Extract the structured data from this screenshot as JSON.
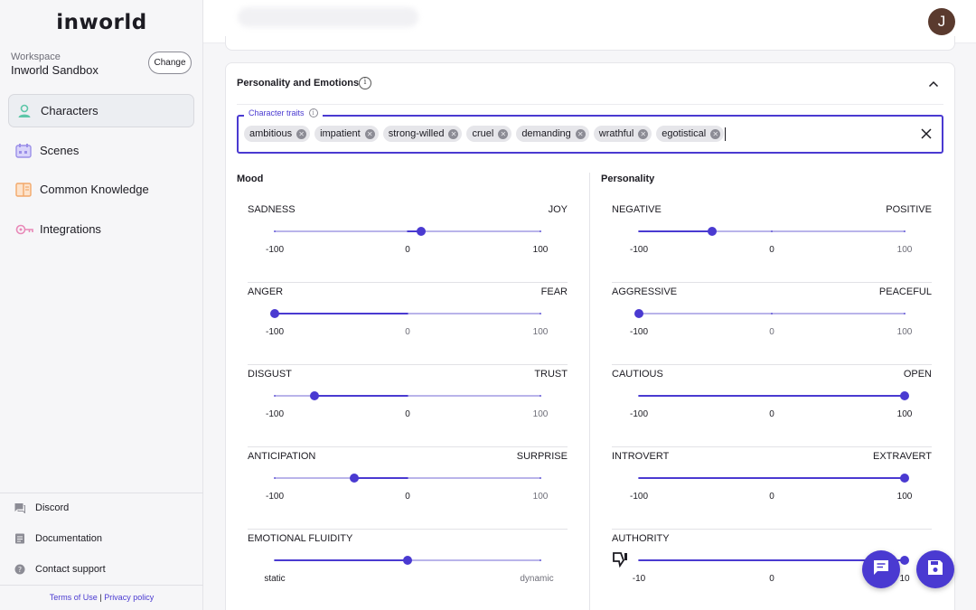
{
  "brand": {
    "logo_text": "inworld"
  },
  "workspace": {
    "label": "Workspace",
    "name": "Inworld Sandbox",
    "change_label": "Change"
  },
  "nav": [
    {
      "label": "Characters",
      "icon": "person-icon",
      "active": true
    },
    {
      "label": "Scenes",
      "icon": "scenes-icon",
      "active": false
    },
    {
      "label": "Common Knowledge",
      "icon": "book-icon",
      "active": false
    },
    {
      "label": "Integrations",
      "icon": "key-icon",
      "active": false
    }
  ],
  "footer": [
    {
      "label": "Discord",
      "icon": "chat-icon"
    },
    {
      "label": "Documentation",
      "icon": "document-icon"
    },
    {
      "label": "Contact support",
      "icon": "help-icon"
    }
  ],
  "legal": {
    "terms": "Terms of Use",
    "separator": "|",
    "privacy": "Privacy policy"
  },
  "user": {
    "avatar_initial": "J"
  },
  "section": {
    "title": "Personality and Emotions",
    "traits_label": "Character traits",
    "traits": [
      "ambitious",
      "impatient",
      "strong-willed",
      "cruel",
      "demanding",
      "wrathful",
      "egotistical"
    ]
  },
  "mood": {
    "title": "Mood",
    "sliders": [
      {
        "left": "SADNESS",
        "right": "JOY",
        "min": "-100",
        "mid": "0",
        "max": "100",
        "value": 10
      },
      {
        "left": "ANGER",
        "right": "FEAR",
        "min": "-100",
        "mid": "0",
        "max": "100",
        "value": -100
      },
      {
        "left": "DISGUST",
        "right": "TRUST",
        "min": "-100",
        "mid": "0",
        "max": "100",
        "value": -70
      },
      {
        "left": "ANTICIPATION",
        "right": "SURPRISE",
        "min": "-100",
        "mid": "0",
        "max": "100",
        "value": -40
      },
      {
        "left": "EMOTIONAL FLUIDITY",
        "right": "",
        "min": "static",
        "mid": "",
        "max": "dynamic",
        "value": 0
      }
    ]
  },
  "personality": {
    "title": "Personality",
    "sliders": [
      {
        "left": "NEGATIVE",
        "right": "POSITIVE",
        "min": "-100",
        "mid": "0",
        "max": "100",
        "value": -45
      },
      {
        "left": "AGGRESSIVE",
        "right": "PEACEFUL",
        "min": "-100",
        "mid": "0",
        "max": "100",
        "value": -100
      },
      {
        "left": "CAUTIOUS",
        "right": "OPEN",
        "min": "-100",
        "mid": "0",
        "max": "100",
        "value": 100
      },
      {
        "left": "INTROVERT",
        "right": "EXTRAVERT",
        "min": "-100",
        "mid": "0",
        "max": "100",
        "value": 100
      },
      {
        "left": "AUTHORITY",
        "right": "",
        "min": "-10",
        "mid": "0",
        "max": "10",
        "value": 10
      }
    ]
  },
  "colors": {
    "accent": "#4a3ad1",
    "track": "#b9b4ea",
    "sidebar_bg": "#f6f6f8",
    "character_icon": "#5cc6a8",
    "scenes_icon": "#9b8fe8",
    "knowledge_icon": "#f2a86a",
    "integrations_icon": "#e889b8"
  }
}
